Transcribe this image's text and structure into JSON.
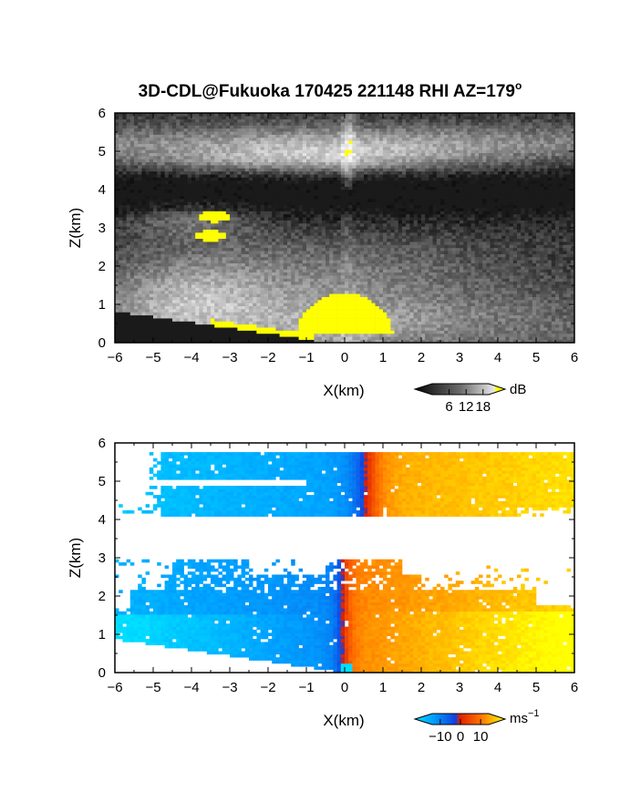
{
  "chart_data": [
    {
      "type": "heatmap",
      "title": "3D-CDL@Fukuoka 170425 221148 RHI AZ=179",
      "title_suffix": "o",
      "xlabel": "X(km)",
      "ylabel": "Z(km)",
      "xlim": [
        -6,
        6
      ],
      "ylim": [
        0,
        6
      ],
      "xticks": [
        -6,
        -5,
        -4,
        -3,
        -2,
        -1,
        0,
        1,
        2,
        3,
        4,
        5,
        6
      ],
      "yticks": [
        0,
        1,
        2,
        3,
        4,
        5,
        6
      ],
      "colorbar": {
        "unit": "dB",
        "ticks": [
          6,
          12,
          18
        ],
        "range": [
          0,
          20
        ],
        "colormap": "grayscale, yellow above 18"
      },
      "quantity": "backscatter intensity"
    },
    {
      "type": "heatmap",
      "xlabel": "X(km)",
      "ylabel": "Z(km)",
      "xlim": [
        -6,
        6
      ],
      "ylim": [
        0,
        6
      ],
      "xticks": [
        -6,
        -5,
        -4,
        -3,
        -2,
        -1,
        0,
        1,
        2,
        3,
        4,
        5,
        6
      ],
      "yticks": [
        0,
        1,
        2,
        3,
        4,
        5,
        6
      ],
      "colorbar": {
        "unit": "ms",
        "unit_exp": "−1",
        "ticks": [
          -10,
          0,
          10
        ],
        "tick_labels": [
          "−10",
          "0",
          "10"
        ],
        "range": [
          -14,
          14
        ],
        "colormap": "cyan-blue-red-yellow"
      },
      "quantity": "radial velocity"
    }
  ]
}
